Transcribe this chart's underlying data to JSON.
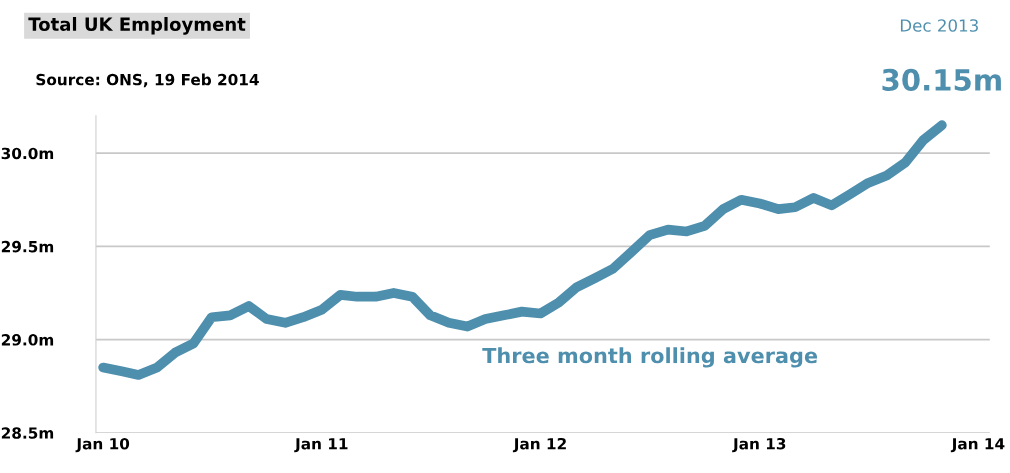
{
  "chart_data": {
    "type": "line",
    "title": "Total UK Employment",
    "x": [
      "2010-01",
      "2010-02",
      "2010-03",
      "2010-04",
      "2010-05",
      "2010-06",
      "2010-07",
      "2010-08",
      "2010-09",
      "2010-10",
      "2010-11",
      "2010-12",
      "2011-01",
      "2011-02",
      "2011-03",
      "2011-04",
      "2011-05",
      "2011-06",
      "2011-07",
      "2011-08",
      "2011-09",
      "2011-10",
      "2011-11",
      "2011-12",
      "2012-01",
      "2012-02",
      "2012-03",
      "2012-04",
      "2012-05",
      "2012-06",
      "2012-07",
      "2012-08",
      "2012-09",
      "2012-10",
      "2012-11",
      "2012-12",
      "2013-01",
      "2013-02",
      "2013-03",
      "2013-04",
      "2013-05",
      "2013-06",
      "2013-07",
      "2013-08",
      "2013-09",
      "2013-10",
      "2013-11"
    ],
    "series": [
      {
        "name": "Three month rolling average",
        "color": "#4f8fae",
        "values": [
          28.85,
          28.83,
          28.81,
          28.85,
          28.93,
          28.98,
          29.12,
          29.13,
          29.18,
          29.11,
          29.09,
          29.12,
          29.16,
          29.24,
          29.23,
          29.23,
          29.25,
          29.23,
          29.13,
          29.09,
          29.07,
          29.11,
          29.13,
          29.15,
          29.14,
          29.2,
          29.28,
          29.33,
          29.38,
          29.47,
          29.56,
          29.59,
          29.58,
          29.61,
          29.7,
          29.75,
          29.73,
          29.7,
          29.71,
          29.76,
          29.72,
          29.78,
          29.84,
          29.88,
          29.95,
          30.07,
          30.15
        ]
      }
    ],
    "xlim": [
      "2009-12-20",
      "2014-01-20"
    ],
    "xticks": [
      {
        "value": "2010-01",
        "label": "Jan 10"
      },
      {
        "value": "2011-01",
        "label": "Jan 11"
      },
      {
        "value": "2012-01",
        "label": "Jan 12"
      },
      {
        "value": "2013-01",
        "label": "Jan 13"
      },
      {
        "value": "2014-01",
        "label": "Jan 14"
      }
    ],
    "ylim": [
      28.5,
      30.2
    ],
    "yticks": [
      {
        "value": 28.5,
        "label": "28.5m"
      },
      {
        "value": 29.0,
        "label": "29.0m"
      },
      {
        "value": 29.5,
        "label": "29.5m"
      },
      {
        "value": 30.0,
        "label": "30.0m"
      }
    ],
    "grid": "y",
    "line_style": "solid",
    "marker": "none",
    "annotations": [
      "Source: ONS, 19 Feb 2014",
      "Dec 2013",
      {
        "text": "30.15m",
        "x": "2013-11",
        "y": 30.15
      }
    ]
  }
}
